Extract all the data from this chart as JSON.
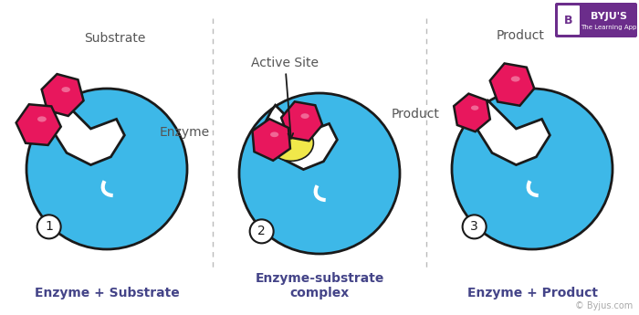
{
  "bg_color": "#ffffff",
  "enzyme_color": "#3db8e8",
  "substrate_color": "#e8175d",
  "active_site_color": "#f0e84a",
  "outline_color": "#1a1a1a",
  "text_color": "#555555",
  "bold_label_color": "#444488",
  "divider_color": "#bbbbbb",
  "bottom_labels": [
    "Enzyme + Substrate",
    "Enzyme-substrate\ncomplex",
    "Enzyme + Product"
  ],
  "byju_purple": "#6b2d8b",
  "byju_text_color": "#ffffff",
  "copyright_color": "#aaaaaa",
  "fig_width": 7.0,
  "fig_height": 3.45
}
